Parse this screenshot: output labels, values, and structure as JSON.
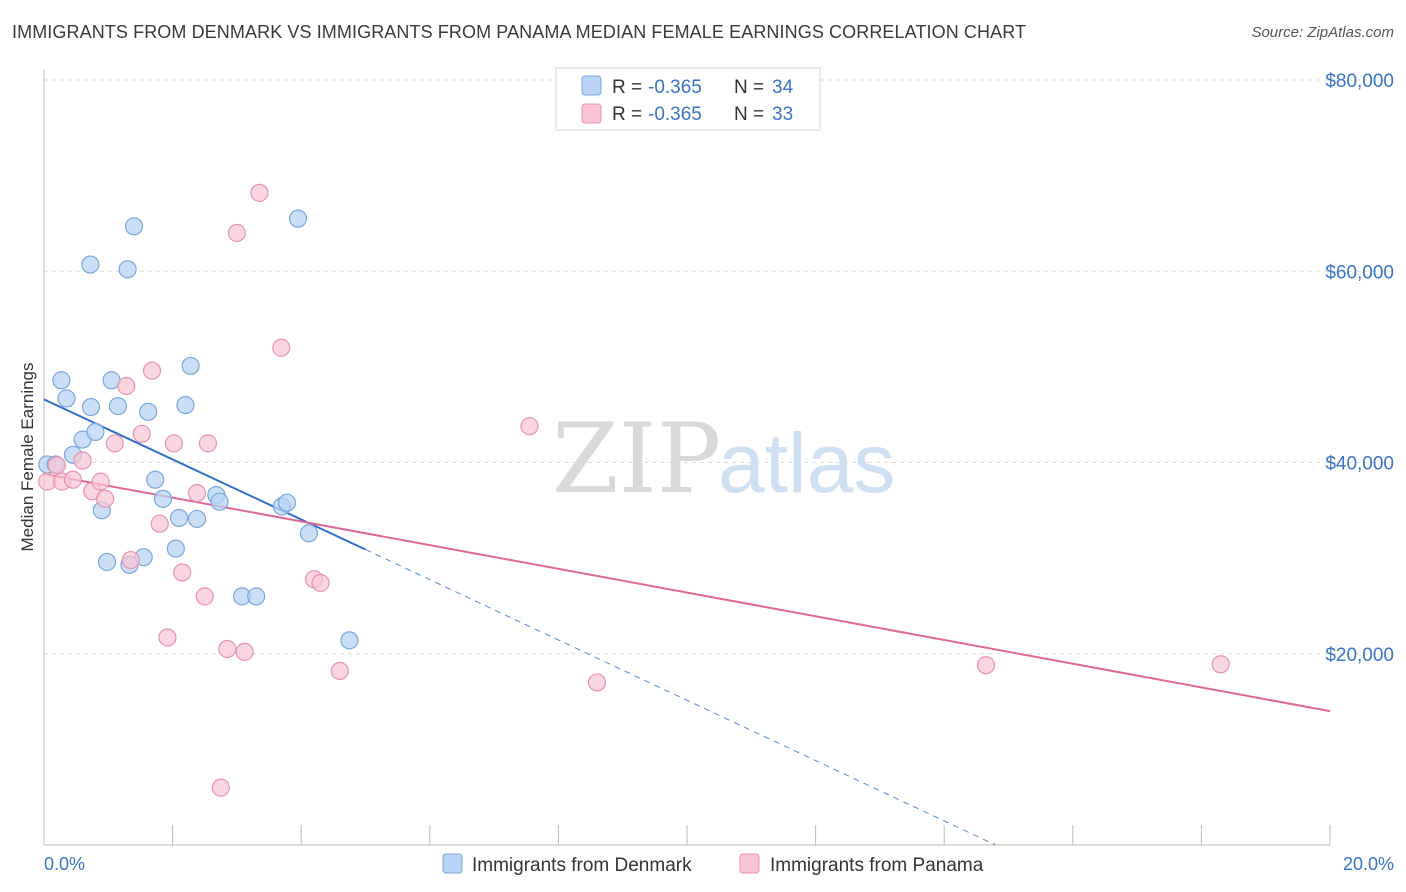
{
  "title": "IMMIGRANTS FROM DENMARK VS IMMIGRANTS FROM PANAMA MEDIAN FEMALE EARNINGS CORRELATION CHART",
  "source": "Source: ZipAtlas.com",
  "watermark": {
    "part1": "ZIP",
    "part2": "atlas"
  },
  "colors": {
    "denmark_fill": "#b8d3f3",
    "denmark_stroke": "#7aa7df",
    "denmark_line": "#2f6fcc",
    "panama_fill": "#f8c5d4",
    "panama_stroke": "#ea93ae",
    "panama_line": "#e0679a",
    "accent_text": "#3a73c8",
    "grid": "#dddddd"
  },
  "legend": {
    "r_label": "R =",
    "n_label": "N =",
    "series": [
      {
        "r": "-0.365",
        "n": "34"
      },
      {
        "r": "-0.365",
        "n": "33"
      }
    ]
  },
  "chart_data": {
    "type": "scatter",
    "title": "IMMIGRANTS FROM DENMARK VS IMMIGRANTS FROM PANAMA MEDIAN FEMALE EARNINGS CORRELATION CHART",
    "xlabel": "",
    "ylabel": "Median Female Earnings",
    "xlim": [
      0,
      20
    ],
    "ylim": [
      0,
      80000
    ],
    "x_tick_labels": [
      "0.0%",
      "20.0%"
    ],
    "y_ticks": [
      20000,
      40000,
      60000,
      80000
    ],
    "y_tick_labels": [
      "$20,000",
      "$40,000",
      "$60,000",
      "$80,000"
    ],
    "grid": true,
    "legend_position": "top-center",
    "series": [
      {
        "name": "Immigrants from Denmark",
        "points": [
          [
            0.05,
            39800
          ],
          [
            0.27,
            48600
          ],
          [
            0.35,
            46700
          ],
          [
            0.45,
            40800
          ],
          [
            0.6,
            42400
          ],
          [
            0.72,
            60700
          ],
          [
            0.73,
            45800
          ],
          [
            0.8,
            43200
          ],
          [
            0.9,
            35000
          ],
          [
            0.98,
            29600
          ],
          [
            1.05,
            48600
          ],
          [
            1.15,
            45900
          ],
          [
            1.3,
            60200
          ],
          [
            1.4,
            64700
          ],
          [
            1.55,
            30100
          ],
          [
            1.62,
            45300
          ],
          [
            1.73,
            38200
          ],
          [
            1.85,
            36200
          ],
          [
            2.05,
            31000
          ],
          [
            2.1,
            34200
          ],
          [
            2.2,
            46000
          ],
          [
            2.28,
            50100
          ],
          [
            2.38,
            34100
          ],
          [
            2.68,
            36600
          ],
          [
            2.73,
            35900
          ],
          [
            3.08,
            26000
          ],
          [
            3.3,
            26000
          ],
          [
            3.7,
            35400
          ],
          [
            3.78,
            35800
          ],
          [
            3.95,
            65500
          ],
          [
            4.12,
            32600
          ],
          [
            4.75,
            21400
          ],
          [
            1.33,
            29300
          ],
          [
            0.18,
            39800
          ]
        ]
      },
      {
        "name": "Immigrants from Panama",
        "points": [
          [
            0.05,
            38000
          ],
          [
            0.2,
            39700
          ],
          [
            0.28,
            38000
          ],
          [
            0.45,
            38200
          ],
          [
            0.6,
            40200
          ],
          [
            0.75,
            37000
          ],
          [
            0.88,
            38000
          ],
          [
            0.95,
            36200
          ],
          [
            1.1,
            42000
          ],
          [
            1.28,
            48000
          ],
          [
            1.35,
            29800
          ],
          [
            1.52,
            43000
          ],
          [
            1.68,
            49600
          ],
          [
            1.8,
            33600
          ],
          [
            1.92,
            21700
          ],
          [
            2.02,
            42000
          ],
          [
            2.15,
            28500
          ],
          [
            2.38,
            36800
          ],
          [
            2.5,
            26000
          ],
          [
            2.55,
            42000
          ],
          [
            2.75,
            6000
          ],
          [
            2.85,
            20500
          ],
          [
            3.0,
            64000
          ],
          [
            3.12,
            20200
          ],
          [
            3.35,
            68200
          ],
          [
            3.69,
            52000
          ],
          [
            4.2,
            27800
          ],
          [
            4.3,
            27400
          ],
          [
            4.6,
            18200
          ],
          [
            7.55,
            43800
          ],
          [
            8.6,
            17000
          ],
          [
            14.65,
            18800
          ],
          [
            18.3,
            18900
          ]
        ]
      }
    ],
    "trendlines": [
      {
        "series": "Immigrants from Denmark",
        "start": [
          0,
          46600
        ],
        "end_solid": [
          5.0,
          30900
        ],
        "end_dashed": [
          14.8,
          0
        ]
      },
      {
        "series": "Immigrants from Panama",
        "start": [
          0,
          38800
        ],
        "end": [
          20,
          14000
        ]
      }
    ]
  }
}
